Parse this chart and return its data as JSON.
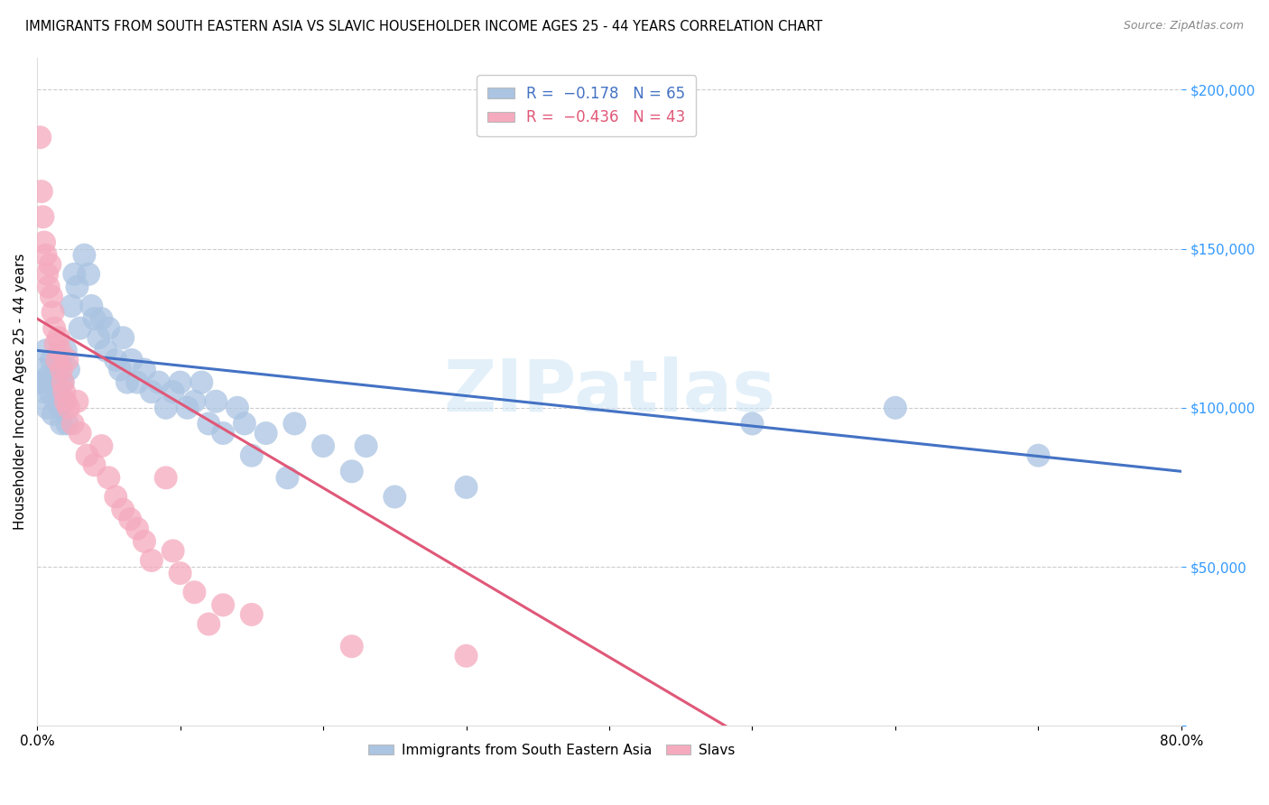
{
  "title": "IMMIGRANTS FROM SOUTH EASTERN ASIA VS SLAVIC HOUSEHOLDER INCOME AGES 25 - 44 YEARS CORRELATION CHART",
  "source": "Source: ZipAtlas.com",
  "ylabel": "Householder Income Ages 25 - 44 years",
  "xlim": [
    0.0,
    0.8
  ],
  "ylim": [
    0,
    210000
  ],
  "yticks": [
    0,
    50000,
    100000,
    150000,
    200000
  ],
  "xticks": [
    0.0,
    0.1,
    0.2,
    0.3,
    0.4,
    0.5,
    0.6,
    0.7,
    0.8
  ],
  "blue_color": "#aac4e2",
  "pink_color": "#f5aabe",
  "blue_line_color": "#4472c4",
  "pink_line_color": "#e05878",
  "watermark": "ZIPatlas",
  "blue_scatter": [
    [
      0.002,
      108000
    ],
    [
      0.003,
      112000
    ],
    [
      0.004,
      108000
    ],
    [
      0.005,
      105000
    ],
    [
      0.006,
      118000
    ],
    [
      0.007,
      100000
    ],
    [
      0.008,
      110000
    ],
    [
      0.009,
      105000
    ],
    [
      0.01,
      115000
    ],
    [
      0.011,
      98000
    ],
    [
      0.012,
      108000
    ],
    [
      0.013,
      102000
    ],
    [
      0.014,
      112000
    ],
    [
      0.015,
      105000
    ],
    [
      0.016,
      100000
    ],
    [
      0.017,
      95000
    ],
    [
      0.018,
      108000
    ],
    [
      0.019,
      102000
    ],
    [
      0.02,
      118000
    ],
    [
      0.021,
      95000
    ],
    [
      0.022,
      112000
    ],
    [
      0.024,
      132000
    ],
    [
      0.026,
      142000
    ],
    [
      0.028,
      138000
    ],
    [
      0.03,
      125000
    ],
    [
      0.033,
      148000
    ],
    [
      0.036,
      142000
    ],
    [
      0.038,
      132000
    ],
    [
      0.04,
      128000
    ],
    [
      0.043,
      122000
    ],
    [
      0.045,
      128000
    ],
    [
      0.048,
      118000
    ],
    [
      0.05,
      125000
    ],
    [
      0.055,
      115000
    ],
    [
      0.058,
      112000
    ],
    [
      0.06,
      122000
    ],
    [
      0.063,
      108000
    ],
    [
      0.066,
      115000
    ],
    [
      0.07,
      108000
    ],
    [
      0.075,
      112000
    ],
    [
      0.08,
      105000
    ],
    [
      0.085,
      108000
    ],
    [
      0.09,
      100000
    ],
    [
      0.095,
      105000
    ],
    [
      0.1,
      108000
    ],
    [
      0.105,
      100000
    ],
    [
      0.11,
      102000
    ],
    [
      0.115,
      108000
    ],
    [
      0.12,
      95000
    ],
    [
      0.125,
      102000
    ],
    [
      0.13,
      92000
    ],
    [
      0.14,
      100000
    ],
    [
      0.145,
      95000
    ],
    [
      0.15,
      85000
    ],
    [
      0.16,
      92000
    ],
    [
      0.175,
      78000
    ],
    [
      0.18,
      95000
    ],
    [
      0.2,
      88000
    ],
    [
      0.22,
      80000
    ],
    [
      0.23,
      88000
    ],
    [
      0.25,
      72000
    ],
    [
      0.3,
      75000
    ],
    [
      0.5,
      95000
    ],
    [
      0.6,
      100000
    ],
    [
      0.7,
      85000
    ]
  ],
  "pink_scatter": [
    [
      0.002,
      185000
    ],
    [
      0.003,
      168000
    ],
    [
      0.004,
      160000
    ],
    [
      0.005,
      152000
    ],
    [
      0.006,
      148000
    ],
    [
      0.007,
      142000
    ],
    [
      0.008,
      138000
    ],
    [
      0.009,
      145000
    ],
    [
      0.01,
      135000
    ],
    [
      0.011,
      130000
    ],
    [
      0.012,
      125000
    ],
    [
      0.013,
      120000
    ],
    [
      0.014,
      115000
    ],
    [
      0.015,
      122000
    ],
    [
      0.016,
      118000
    ],
    [
      0.017,
      112000
    ],
    [
      0.018,
      108000
    ],
    [
      0.019,
      105000
    ],
    [
      0.02,
      102000
    ],
    [
      0.021,
      115000
    ],
    [
      0.022,
      100000
    ],
    [
      0.025,
      95000
    ],
    [
      0.028,
      102000
    ],
    [
      0.03,
      92000
    ],
    [
      0.035,
      85000
    ],
    [
      0.04,
      82000
    ],
    [
      0.045,
      88000
    ],
    [
      0.05,
      78000
    ],
    [
      0.055,
      72000
    ],
    [
      0.06,
      68000
    ],
    [
      0.065,
      65000
    ],
    [
      0.07,
      62000
    ],
    [
      0.075,
      58000
    ],
    [
      0.08,
      52000
    ],
    [
      0.09,
      78000
    ],
    [
      0.095,
      55000
    ],
    [
      0.1,
      48000
    ],
    [
      0.11,
      42000
    ],
    [
      0.12,
      32000
    ],
    [
      0.13,
      38000
    ],
    [
      0.15,
      35000
    ],
    [
      0.22,
      25000
    ],
    [
      0.3,
      22000
    ]
  ],
  "blue_line": [
    0.0,
    0.8,
    118000,
    80000
  ],
  "pink_line_solid": [
    0.0,
    0.5,
    128000,
    -5000
  ],
  "pink_line_dash": [
    0.5,
    0.62,
    -5000,
    -25000
  ]
}
